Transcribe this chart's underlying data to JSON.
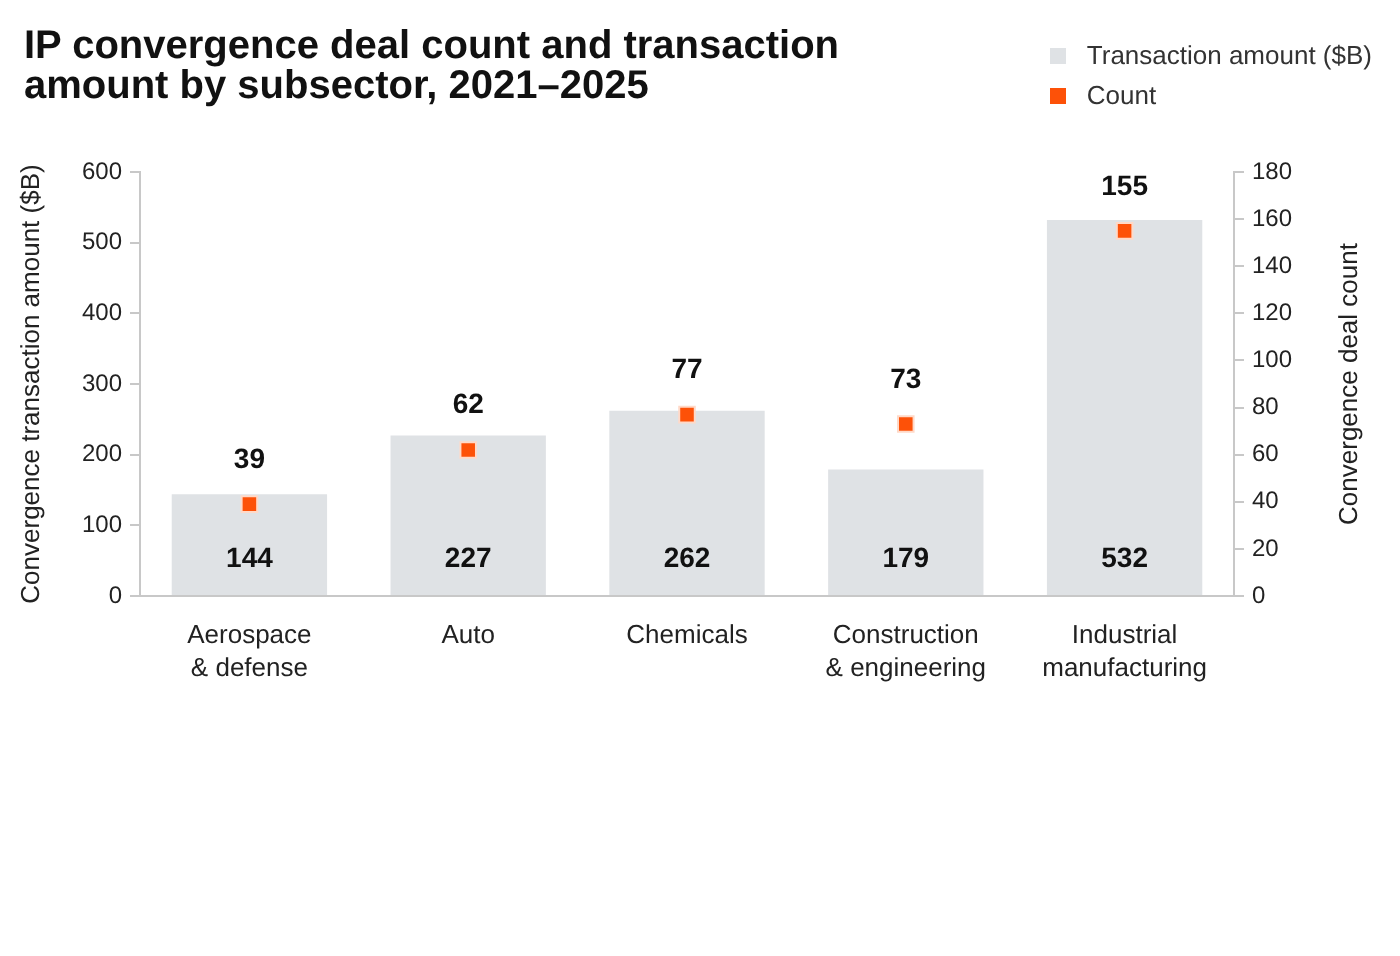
{
  "chart_data": {
    "type": "bar",
    "title": "IP convergence deal count and transaction amount by subsector, 2021–2025",
    "categories": [
      "Aerospace & defense",
      "Auto",
      "Chemicals",
      "Construction & engineering",
      "Industrial manufacturing"
    ],
    "series": [
      {
        "name": "Transaction amount ($B)",
        "color": "#dfe2e5",
        "values": [
          144,
          227,
          262,
          179,
          532
        ]
      },
      {
        "name": "Count",
        "type": "scatter",
        "axis": "y2",
        "color": "#fd5108",
        "values": [
          39,
          62,
          77,
          73,
          155
        ]
      }
    ],
    "ylabel": "Convergence transaction amount ($B)",
    "y2label": "Convergence deal count",
    "ylim": [
      0,
      600
    ],
    "yticks": [
      0,
      100,
      200,
      300,
      400,
      500,
      600
    ],
    "y2lim": [
      0,
      180
    ],
    "y2ticks": [
      0,
      20,
      40,
      60,
      80,
      100,
      120,
      140,
      160,
      180
    ],
    "marker": "square",
    "data_labels": true,
    "legend": "top right",
    "grid": false
  }
}
